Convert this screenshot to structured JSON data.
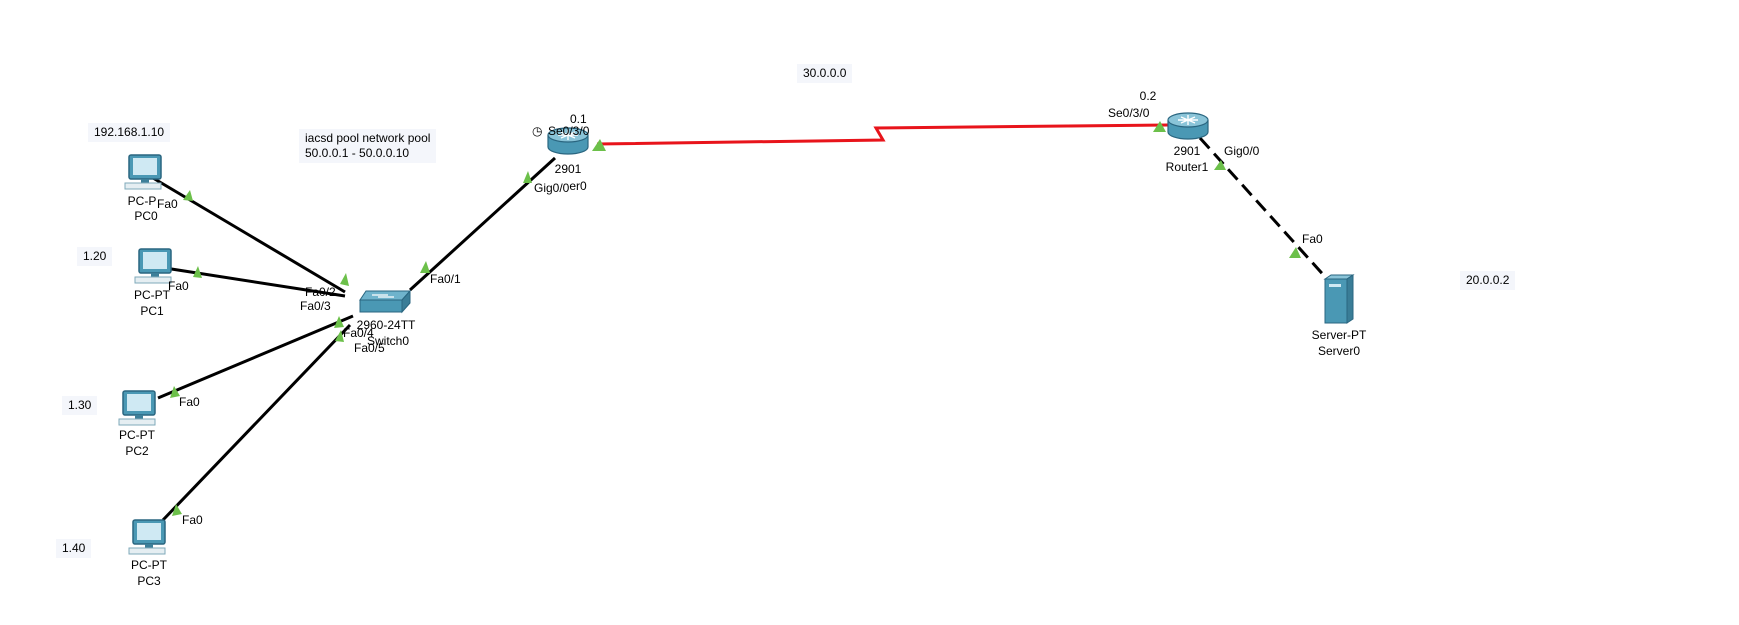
{
  "notes": {
    "pc0_ip": "192.168.1.10",
    "pc1_ip": "1.20",
    "pc2_ip": "1.30",
    "pc3_ip": "1.40",
    "pool_line1": "iacsd pool network pool",
    "pool_line2": "50.0.0.1 - 50.0.0.10",
    "serial_net": "30.0.0.0",
    "server_ip": "20.0.0.2"
  },
  "devices": {
    "pc0": {
      "model": "PC-PT",
      "name": "PC0",
      "model_visible": "PC-P",
      "name_visible": "PC0"
    },
    "pc1": {
      "model": "PC-PT",
      "name": "PC1"
    },
    "pc2": {
      "model": "PC-PT",
      "name": "PC2"
    },
    "pc3": {
      "model": "PC-PT",
      "name": "PC3"
    },
    "switch0": {
      "model": "2960-24TT",
      "name": "Switch0"
    },
    "router0": {
      "model": "2901",
      "name": "Router0",
      "name_visible": "er0",
      "addr": "0.1"
    },
    "router1": {
      "model": "2901",
      "name": "Router1",
      "addr": "0.2"
    },
    "server0": {
      "model": "Server-PT",
      "name": "Server0"
    }
  },
  "ports": {
    "pc0_fa0": "Fa0",
    "pc1_fa0": "Fa0",
    "pc2_fa0": "Fa0",
    "pc3_fa0": "Fa0",
    "sw_fa0_1": "Fa0/1",
    "sw_fa0_2": "Fa0/2",
    "sw_fa0_3": "Fa0/3",
    "sw_fa0_4": "Fa0/4",
    "sw_fa0_5": "Fa0/5",
    "r0_gig0_0": "Gig0/0",
    "r0_se0_3_0": "Se0/3/0",
    "r1_se0_3_0": "Se0/3/0",
    "r1_gig0_0": "Gig0/0",
    "server_fa0": "Fa0"
  },
  "colors": {
    "ethernet_link": "#000000",
    "serial_link": "#e8141b",
    "link_up": "#6cc04a",
    "device_teal": "#4a98b4",
    "note_bg": "#f4f6fb"
  },
  "icons": {
    "pc": "desktop-pc-icon",
    "switch": "switch-icon",
    "router": "router-icon",
    "server": "server-tower-icon",
    "clock": "clock-icon"
  }
}
